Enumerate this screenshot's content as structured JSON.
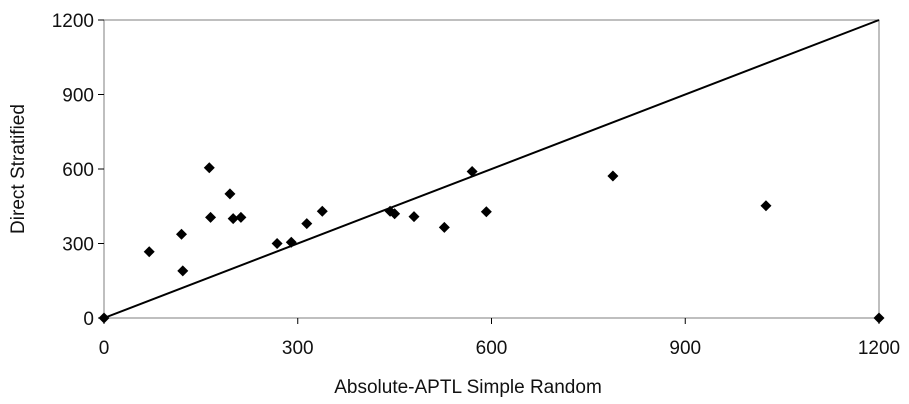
{
  "chart_data": {
    "type": "scatter",
    "title": "",
    "xlabel": "Absolute-APTL Simple Random",
    "ylabel": "Direct Stratified",
    "xlim": [
      0,
      1200
    ],
    "ylim": [
      0,
      1200
    ],
    "xticks": [
      0,
      300,
      600,
      900,
      1200
    ],
    "yticks": [
      0,
      300,
      600,
      900,
      1200
    ],
    "xtick_labels": [
      "0",
      "300",
      "600",
      "900",
      "1200"
    ],
    "ytick_labels": [
      "0",
      "300",
      "600",
      "900",
      "1200"
    ],
    "grid": false,
    "marker": "diamond",
    "marker_color": "#000000",
    "reference_line": {
      "x": [
        0,
        1200
      ],
      "y": [
        0,
        1200
      ],
      "color": "#000000"
    },
    "series": [
      {
        "x": [
          70,
          120,
          122,
          163,
          165,
          195,
          200,
          212,
          268,
          290,
          314,
          338,
          443,
          450,
          480,
          527,
          570,
          592,
          788,
          1025,
          0,
          1200
        ],
        "y": [
          267,
          337,
          190,
          605,
          405,
          500,
          400,
          405,
          300,
          305,
          380,
          430,
          430,
          420,
          408,
          365,
          590,
          428,
          572,
          452,
          0,
          0
        ]
      }
    ]
  }
}
